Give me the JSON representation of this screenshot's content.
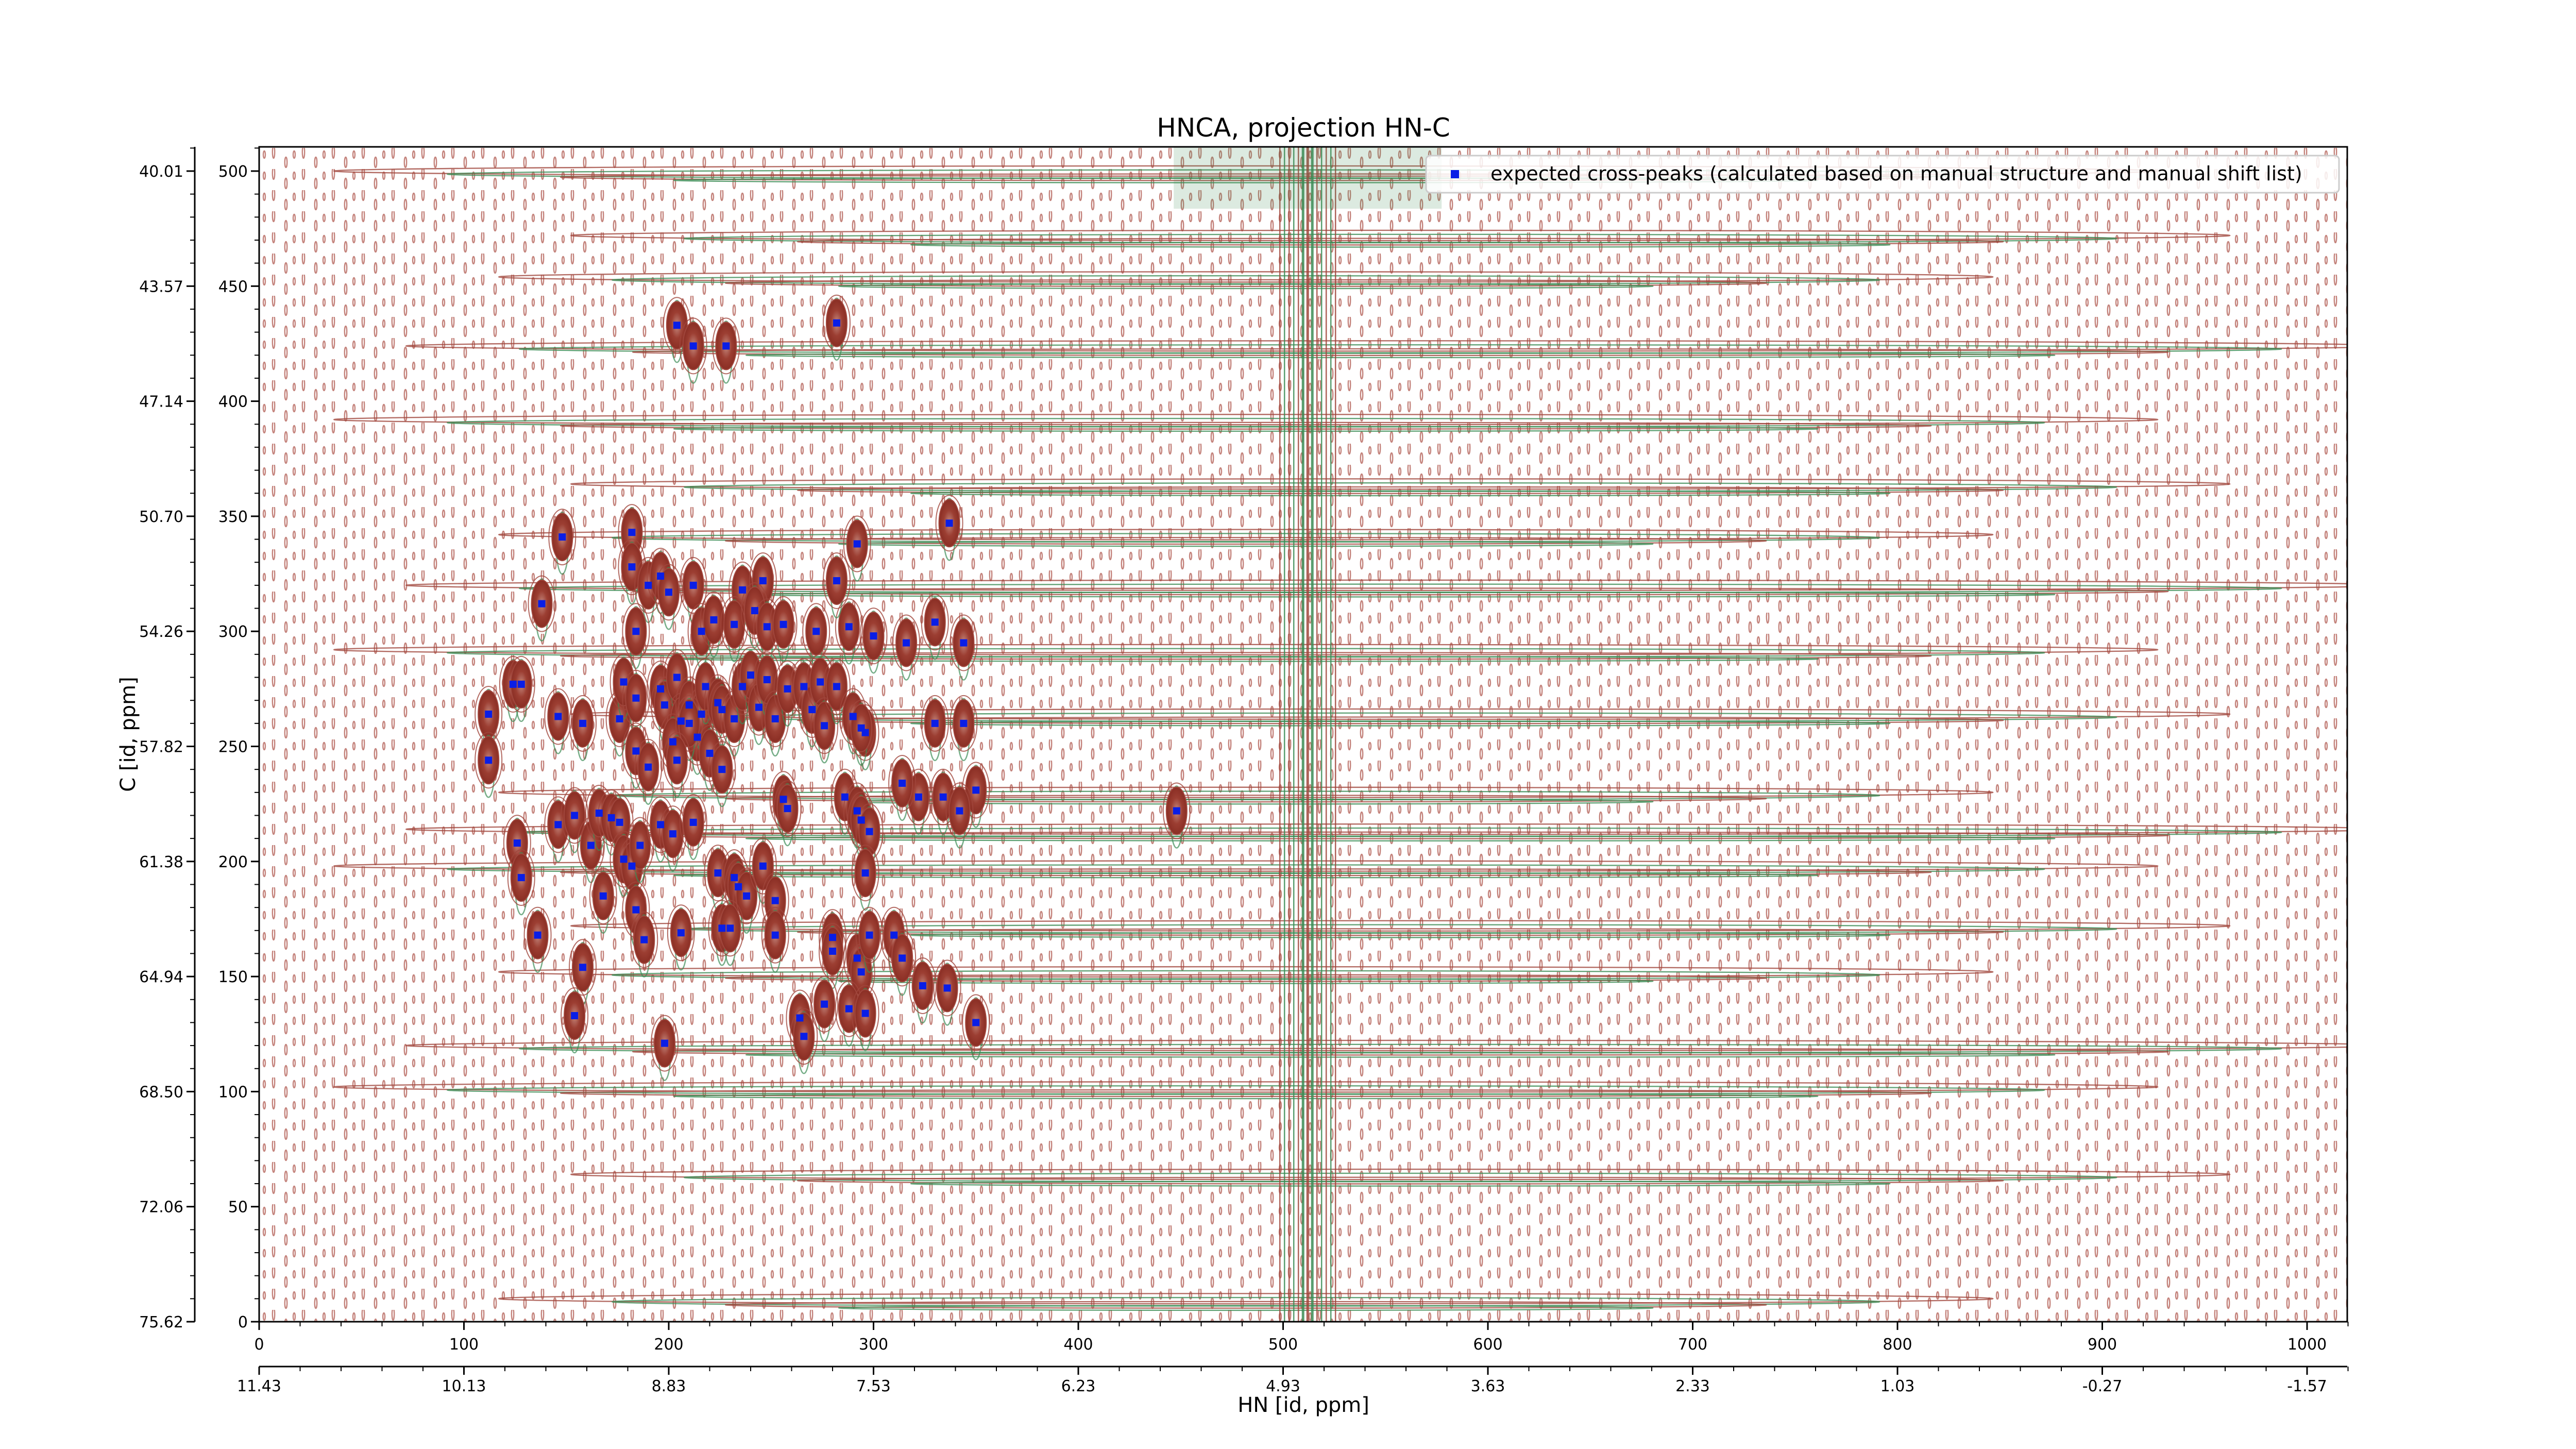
{
  "chart_data": {
    "type": "scatter",
    "title": "HNCA, projection HN-C",
    "xlabel": "HN [id, ppm]",
    "ylabel": "C [id, ppm]",
    "x_index_ticks": [
      "0",
      "100",
      "200",
      "300",
      "400",
      "500",
      "600",
      "700",
      "800",
      "900",
      "1000"
    ],
    "x_ppm_ticks": [
      "11.43",
      "10.13",
      "8.83",
      "7.53",
      "6.23",
      "4.93",
      "3.63",
      "2.33",
      "1.03",
      "-0.27",
      "-1.57"
    ],
    "y_index_ticks": [
      "0",
      "50",
      "100",
      "150",
      "200",
      "250",
      "300",
      "350",
      "400",
      "450",
      "500"
    ],
    "y_ppm_ticks": [
      "75.62",
      "72.06",
      "68.50",
      "64.94",
      "61.38",
      "57.82",
      "54.26",
      "50.70",
      "47.14",
      "43.57",
      "40.01"
    ],
    "xlim": [
      0,
      1022
    ],
    "ylim": [
      0,
      511
    ],
    "legend": {
      "label": "expected cross-peaks (calculated based on manual structure and manual shift list)",
      "position": "top-right"
    },
    "colors": {
      "positive_contours": "#a0463c",
      "negative_contours": "#3c8c55",
      "expected_peaks": "#0a1ee6"
    },
    "contours": {
      "solvent_line_x": 512,
      "horizontal_streak_y": [
        8,
        62,
        100,
        118,
        150,
        170,
        196,
        212,
        228,
        262,
        290,
        318,
        340,
        362,
        390,
        422,
        452,
        470,
        498
      ]
    },
    "series": [
      {
        "name": "expected cross-peaks (calculated based on manual structure and manual shift list)",
        "points": [
          [
            204,
            433
          ],
          [
            212,
            424
          ],
          [
            228,
            424
          ],
          [
            282,
            434
          ],
          [
            148,
            341
          ],
          [
            138,
            312
          ],
          [
            182,
            343
          ],
          [
            182,
            328
          ],
          [
            190,
            320
          ],
          [
            196,
            324
          ],
          [
            200,
            317
          ],
          [
            212,
            320
          ],
          [
            236,
            318
          ],
          [
            246,
            322
          ],
          [
            184,
            300
          ],
          [
            216,
            300
          ],
          [
            222,
            305
          ],
          [
            232,
            303
          ],
          [
            242,
            309
          ],
          [
            248,
            302
          ],
          [
            256,
            303
          ],
          [
            272,
            300
          ],
          [
            288,
            302
          ],
          [
            300,
            298
          ],
          [
            316,
            295
          ],
          [
            330,
            304
          ],
          [
            337,
            347
          ],
          [
            292,
            338
          ],
          [
            282,
            322
          ],
          [
            124,
            277
          ],
          [
            128,
            277
          ],
          [
            112,
            264
          ],
          [
            112,
            244
          ],
          [
            146,
            263
          ],
          [
            158,
            260
          ],
          [
            176,
            262
          ],
          [
            178,
            278
          ],
          [
            184,
            271
          ],
          [
            196,
            275
          ],
          [
            198,
            268
          ],
          [
            204,
            280
          ],
          [
            206,
            261
          ],
          [
            210,
            268
          ],
          [
            214,
            254
          ],
          [
            216,
            264
          ],
          [
            218,
            276
          ],
          [
            224,
            269
          ],
          [
            226,
            266
          ],
          [
            232,
            262
          ],
          [
            236,
            276
          ],
          [
            240,
            281
          ],
          [
            244,
            267
          ],
          [
            248,
            279
          ],
          [
            252,
            262
          ],
          [
            258,
            275
          ],
          [
            266,
            276
          ],
          [
            270,
            266
          ],
          [
            274,
            278
          ],
          [
            276,
            259
          ],
          [
            282,
            276
          ],
          [
            290,
            263
          ],
          [
            296,
            256
          ],
          [
            294,
            258
          ],
          [
            330,
            260
          ],
          [
            344,
            260
          ],
          [
            344,
            295
          ],
          [
            202,
            252
          ],
          [
            210,
            260
          ],
          [
            220,
            247
          ],
          [
            226,
            240
          ],
          [
            184,
            248
          ],
          [
            190,
            241
          ],
          [
            204,
            244
          ],
          [
            126,
            208
          ],
          [
            128,
            193
          ],
          [
            146,
            216
          ],
          [
            154,
            220
          ],
          [
            162,
            207
          ],
          [
            166,
            221
          ],
          [
            172,
            219
          ],
          [
            176,
            217
          ],
          [
            178,
            201
          ],
          [
            182,
            198
          ],
          [
            186,
            207
          ],
          [
            196,
            216
          ],
          [
            202,
            212
          ],
          [
            212,
            217
          ],
          [
            224,
            195
          ],
          [
            232,
            193
          ],
          [
            234,
            189
          ],
          [
            238,
            185
          ],
          [
            246,
            198
          ],
          [
            252,
            183
          ],
          [
            256,
            227
          ],
          [
            258,
            223
          ],
          [
            286,
            228
          ],
          [
            292,
            222
          ],
          [
            294,
            218
          ],
          [
            298,
            213
          ],
          [
            322,
            228
          ],
          [
            334,
            228
          ],
          [
            350,
            231
          ],
          [
            342,
            222
          ],
          [
            448,
            222
          ],
          [
            314,
            234
          ],
          [
            296,
            195
          ],
          [
            136,
            168
          ],
          [
            168,
            185
          ],
          [
            184,
            179
          ],
          [
            188,
            166
          ],
          [
            206,
            169
          ],
          [
            226,
            171
          ],
          [
            230,
            171
          ],
          [
            252,
            168
          ],
          [
            280,
            167
          ],
          [
            280,
            161
          ],
          [
            292,
            158
          ],
          [
            294,
            152
          ],
          [
            298,
            168
          ],
          [
            310,
            168
          ],
          [
            314,
            158
          ],
          [
            324,
            146
          ],
          [
            336,
            145
          ],
          [
            350,
            130
          ],
          [
            158,
            154
          ],
          [
            154,
            133
          ],
          [
            288,
            136
          ],
          [
            296,
            134
          ],
          [
            198,
            121
          ],
          [
            264,
            132
          ],
          [
            266,
            124
          ],
          [
            276,
            138
          ]
        ]
      }
    ]
  }
}
